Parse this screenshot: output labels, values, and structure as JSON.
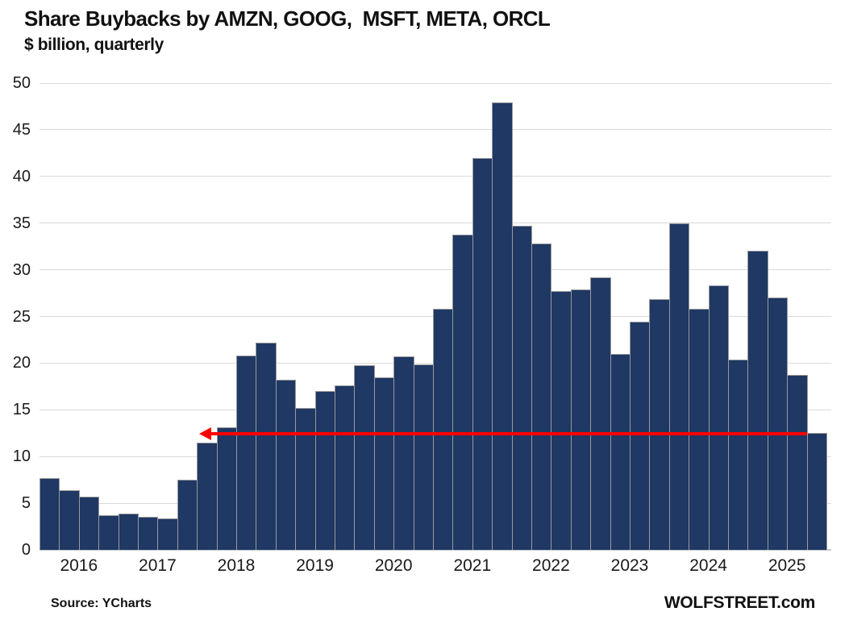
{
  "header": {
    "title": "Share Buybacks by AMZN, GOOG,  MSFT, META, ORCL",
    "subtitle": "$ billion, quarterly"
  },
  "footer": {
    "source": "Source: YCharts",
    "brand": "WOLFSTREET.com"
  },
  "chart_data": {
    "type": "bar",
    "title": "Share Buybacks by AMZN, GOOG,  MSFT, META, ORCL",
    "subtitle": "$ billion, quarterly",
    "xlabel": "",
    "ylabel": "$ billion",
    "ylim": [
      0,
      50
    ],
    "ytick_step": 5,
    "yticks": [
      0,
      5,
      10,
      15,
      20,
      25,
      30,
      35,
      40,
      45,
      50
    ],
    "grid": true,
    "legend": "none",
    "categories": [
      "2016 Q1",
      "2016 Q2",
      "2016 Q3",
      "2016 Q4",
      "2017 Q1",
      "2017 Q2",
      "2017 Q3",
      "2017 Q4",
      "2018 Q1",
      "2018 Q2",
      "2018 Q3",
      "2018 Q4",
      "2019 Q1",
      "2019 Q2",
      "2019 Q3",
      "2019 Q4",
      "2020 Q1",
      "2020 Q2",
      "2020 Q3",
      "2020 Q4",
      "2021 Q1",
      "2021 Q2",
      "2021 Q3",
      "2021 Q4",
      "2022 Q1",
      "2022 Q2",
      "2022 Q3",
      "2022 Q4",
      "2023 Q1",
      "2023 Q2",
      "2023 Q3",
      "2023 Q4",
      "2024 Q1",
      "2024 Q2",
      "2024 Q3",
      "2024 Q4",
      "2025 Q1",
      "2025 Q2",
      "2025 Q3",
      "2025 Q4"
    ],
    "values": [
      7.7,
      6.4,
      5.7,
      3.7,
      3.9,
      3.5,
      3.4,
      7.5,
      11.5,
      13.1,
      20.8,
      22.2,
      18.2,
      15.2,
      17.0,
      17.6,
      19.8,
      18.5,
      20.7,
      19.9,
      25.8,
      33.8,
      42.0,
      47.9,
      34.7,
      32.8,
      27.7,
      27.9,
      29.2,
      21.0,
      24.4,
      26.9,
      35.0,
      25.8,
      28.3,
      20.4,
      32.0,
      27.0,
      18.7,
      12.5
    ],
    "year_labels": [
      "2016",
      "2017",
      "2018",
      "2019",
      "2020",
      "2021",
      "2022",
      "2023",
      "2024",
      "2025"
    ],
    "annotation": {
      "type": "horizontal-arrow-pointing-left",
      "y_value": 12.4,
      "start_category": "2018 Q1",
      "end_category": "2025 Q4",
      "color": "#fe0000"
    },
    "colors": {
      "bar_fill": "#1f3864",
      "bar_border": "#9a9a9a",
      "gridline": "#d9d9d9",
      "arrow": "#fe0000",
      "text": "#111111",
      "background": "#ffffff"
    }
  }
}
